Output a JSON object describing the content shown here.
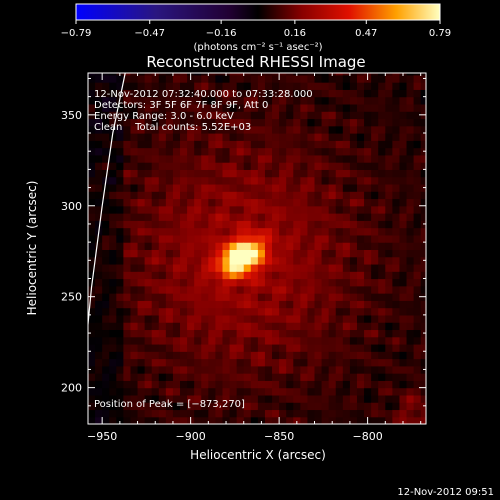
{
  "chart_data": {
    "type": "heatmap",
    "title": "Reconstructed RHESSI Image",
    "xlabel": "Heliocentric X (arcsec)",
    "ylabel": "Heliocentric Y (arcsec)",
    "xlim": [
      -958,
      -767
    ],
    "ylim": [
      180,
      373
    ],
    "x_ticks": [
      -950,
      -900,
      -850,
      -800
    ],
    "x_tick_labels": [
      "−950",
      "−900",
      "−850",
      "−800"
    ],
    "y_ticks": [
      200,
      250,
      300,
      350
    ],
    "y_tick_labels": [
      "200",
      "250",
      "300",
      "350"
    ],
    "colorbar": {
      "range": [
        -0.79,
        0.79
      ],
      "ticks": [
        -0.79,
        -0.47,
        -0.16,
        0.16,
        0.47,
        0.79
      ],
      "tick_labels": [
        "−0.79",
        "−0.47",
        "−0.16",
        "0.16",
        "0.47",
        "0.79"
      ],
      "unit_label": "(photons cm⁻² s⁻¹ asec⁻²)"
    },
    "peak": [
      -873,
      270
    ],
    "peak_value": 0.79,
    "annotations": [
      "12-Nov-2012 07:32:40.000 to 07:33:28.000",
      "Detectors: 3F 5F 6F 7F 8F 9F, Att 0",
      "Energy Range: 3.0 - 6.0 keV",
      "Clean    Total counts: 5.52E+03"
    ],
    "peak_label": "Position of Peak = [−873,270]",
    "limb_curve": [
      [
        -937,
        373
      ],
      [
        -944,
        340
      ],
      [
        -950,
        300
      ],
      [
        -956,
        255
      ],
      [
        -960,
        215
      ],
      [
        -963,
        180
      ]
    ],
    "grid": false,
    "legend": "none"
  },
  "footer": "12-Nov-2012 09:51"
}
